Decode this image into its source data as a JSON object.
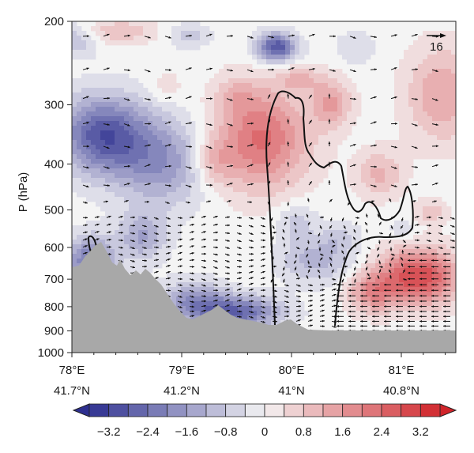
{
  "chart_data": {
    "type": "heatmap",
    "title": "",
    "xlabel": "",
    "ylabel": "P (hPa)",
    "y_scale": "log",
    "ylim": [
      1000,
      200
    ],
    "y_ticks": [
      200,
      300,
      400,
      500,
      600,
      700,
      800,
      900,
      1000
    ],
    "x_ticks": [
      {
        "lon": "78°E",
        "lat": "41.7°N"
      },
      {
        "lon": "79°E",
        "lat": "41.2°N"
      },
      {
        "lon": "80°E",
        "lat": "41°N"
      },
      {
        "lon": "81°E",
        "lat": "40.8°N"
      }
    ],
    "colorbar": {
      "min": -3.6,
      "max": 3.6,
      "step": 0.4,
      "extend": "both",
      "tick_labels": [
        "−3.2",
        "−2.4",
        "−1.6",
        "−0.8",
        "0",
        "0.8",
        "1.6",
        "2.4",
        "3.2"
      ],
      "low_color": "#2d2f8f",
      "mid_color": "#f4f4f4",
      "high_color": "#d0242a"
    },
    "reference_vector_label": "16",
    "terrain_color": "#a8a8a8",
    "contour_color": "#111111"
  }
}
